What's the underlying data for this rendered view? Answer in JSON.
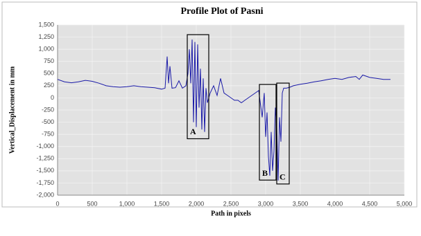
{
  "chart_data": {
    "type": "line",
    "title": "Profile Plot of Pasni",
    "x_label": "Path in pixels",
    "y_label": "Vertical_Displacement in mm",
    "color": "#1a1aa8",
    "grid": true,
    "x": [
      0,
      100,
      200,
      300,
      400,
      500,
      600,
      700,
      800,
      900,
      1000,
      1100,
      1200,
      1300,
      1400,
      1500,
      1550,
      1580,
      1600,
      1620,
      1650,
      1700,
      1750,
      1800,
      1850,
      1880,
      1900,
      1920,
      1940,
      1960,
      1980,
      2000,
      2020,
      2040,
      2060,
      2080,
      2100,
      2120,
      2140,
      2160,
      2200,
      2250,
      2300,
      2350,
      2400,
      2450,
      2500,
      2550,
      2600,
      2650,
      2700,
      2750,
      2800,
      2850,
      2900,
      2950,
      2980,
      3000,
      3020,
      3040,
      3060,
      3080,
      3100,
      3120,
      3140,
      3160,
      3180,
      3200,
      3220,
      3240,
      3260,
      3300,
      3350,
      3400,
      3500,
      3600,
      3700,
      3800,
      3900,
      4000,
      4100,
      4200,
      4300,
      4350,
      4400,
      4500,
      4600,
      4700,
      4800
    ],
    "values": [
      380,
      330,
      310,
      330,
      360,
      340,
      300,
      250,
      230,
      220,
      230,
      250,
      230,
      220,
      210,
      180,
      200,
      850,
      300,
      650,
      200,
      210,
      350,
      200,
      250,
      500,
      1000,
      300,
      1200,
      -500,
      1150,
      -600,
      1100,
      -200,
      600,
      -650,
      400,
      -700,
      200,
      -100,
      100,
      250,
      50,
      400,
      100,
      50,
      0,
      -50,
      -50,
      -100,
      -50,
      0,
      50,
      100,
      150,
      -400,
      100,
      -800,
      -300,
      -1200,
      -1600,
      -700,
      -1500,
      -1100,
      -200,
      -600,
      -1700,
      -400,
      -900,
      100,
      200,
      200,
      220,
      250,
      280,
      300,
      330,
      350,
      380,
      400,
      380,
      420,
      440,
      380,
      470,
      420,
      400,
      380,
      380
    ],
    "xlim": [
      0,
      5000
    ],
    "xticks": [
      0,
      500,
      {
        "value": 1000,
        "label": "1,000"
      },
      {
        "value": 1500,
        "label": "1,500"
      },
      {
        "value": 2000,
        "label": "2,000"
      },
      {
        "value": 2500,
        "label": "2,500"
      },
      {
        "value": 3000,
        "label": "3,000"
      },
      {
        "value": 3500,
        "label": "3,500"
      },
      {
        "value": 4000,
        "label": "4,000"
      },
      {
        "value": 4500,
        "label": "4,500"
      },
      {
        "value": 5000,
        "label": "5,000"
      }
    ],
    "ylim": [
      -2000,
      1500
    ],
    "yticks": [
      {
        "value": -2000,
        "label": "-2,000"
      },
      {
        "value": -1750,
        "label": "-1,750"
      },
      {
        "value": -1500,
        "label": "-1,500"
      },
      {
        "value": -1250,
        "label": "-1,250"
      },
      {
        "value": -1000,
        "label": "-1,000"
      },
      -750,
      -500,
      -250,
      0,
      250,
      500,
      750,
      {
        "value": 1000,
        "label": "1,000"
      },
      {
        "value": 1250,
        "label": "1,250"
      },
      {
        "value": 1500,
        "label": "1,500"
      }
    ],
    "annotations": [
      {
        "label": "A",
        "x": [
          1870,
          2180
        ],
        "y": [
          -840,
          1300
        ]
      },
      {
        "label": "B",
        "x": [
          2910,
          3150
        ],
        "y": [
          -1690,
          276
        ]
      },
      {
        "label": "C",
        "x": [
          3160,
          3340
        ],
        "y": [
          -1770,
          304
        ]
      }
    ]
  }
}
